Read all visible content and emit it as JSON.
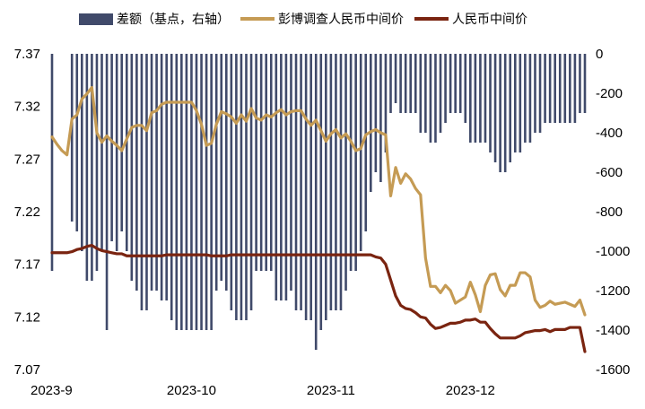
{
  "chart_data": {
    "type": "bar+line",
    "title": "",
    "colors": {
      "bar": "#404a6a",
      "survey": "#c59b54",
      "fixing": "#7a2410"
    },
    "left_axis": {
      "ylim": [
        7.07,
        7.37
      ],
      "ticks": [
        "7.37",
        "7.32",
        "7.27",
        "7.22",
        "7.17",
        "7.12",
        "7.07"
      ]
    },
    "right_axis": {
      "ylim": [
        -1600,
        0
      ],
      "ticks": [
        "0",
        "-200",
        "-400",
        "-600",
        "-800",
        "-1000",
        "-1200",
        "-1400",
        "-1600"
      ]
    },
    "x_tick_labels": [
      "2023-9",
      "2023-10",
      "2023-11",
      "2023-12"
    ],
    "x_tick_positions": [
      0,
      28,
      56,
      84
    ],
    "n_points": 108,
    "series": [
      {
        "name": "差额（基点，右轴）",
        "type": "bar",
        "axis": "right",
        "values": [
          -1100,
          0,
          0,
          0,
          -850,
          -900,
          -1000,
          -1150,
          -1150,
          -1100,
          -1000,
          -1400,
          -950,
          -1000,
          -900,
          -1000,
          -1150,
          -1200,
          -1300,
          -1300,
          -1200,
          -1200,
          -1250,
          -1250,
          -1350,
          -1400,
          -1400,
          -1400,
          -1400,
          -1400,
          -1400,
          -1400,
          -1400,
          -1200,
          -1150,
          -1200,
          -1300,
          -1350,
          -1350,
          -1350,
          -1300,
          -1100,
          -1100,
          -1100,
          -1100,
          -1250,
          -1250,
          -1250,
          -1200,
          -1300,
          -1300,
          -1350,
          -1350,
          -1500,
          -1400,
          -1350,
          -1300,
          -1300,
          -1300,
          -1200,
          -1100,
          -1100,
          -1000,
          -900,
          -700,
          -600,
          -650,
          -500,
          -300,
          -250,
          -300,
          -300,
          -300,
          -300,
          -400,
          -400,
          -450,
          -450,
          -400,
          -350,
          -300,
          -300,
          -300,
          -350,
          -450,
          -450,
          -450,
          -450,
          -500,
          -550,
          -600,
          -600,
          -550,
          -500,
          -500,
          -450,
          -450,
          -400,
          -400,
          -350,
          -350,
          -350,
          -350,
          -350,
          -350,
          -350,
          -300,
          -300
        ]
      },
      {
        "name": "彭博调查人民币中间价",
        "type": "line",
        "axis": "left",
        "values": [
          7.291,
          7.284,
          7.278,
          7.274,
          7.308,
          7.312,
          7.327,
          7.332,
          7.338,
          7.295,
          7.286,
          7.292,
          7.287,
          7.283,
          7.278,
          7.289,
          7.3,
          7.302,
          7.302,
          7.297,
          7.314,
          7.316,
          7.322,
          7.324,
          7.324,
          7.324,
          7.324,
          7.324,
          7.324,
          7.316,
          7.303,
          7.283,
          7.285,
          7.303,
          7.315,
          7.313,
          7.31,
          7.304,
          7.312,
          7.306,
          7.318,
          7.309,
          7.307,
          7.312,
          7.31,
          7.314,
          7.317,
          7.312,
          7.315,
          7.316,
          7.316,
          7.308,
          7.302,
          7.307,
          7.297,
          7.287,
          7.294,
          7.298,
          7.29,
          7.294,
          7.287,
          7.278,
          7.28,
          7.293,
          7.296,
          7.298,
          7.295,
          7.293,
          7.235,
          7.262,
          7.247,
          7.256,
          7.251,
          7.242,
          7.236,
          7.176,
          7.149,
          7.149,
          7.143,
          7.15,
          7.145,
          7.133,
          7.136,
          7.139,
          7.153,
          7.141,
          7.125,
          7.15,
          7.16,
          7.161,
          7.146,
          7.14,
          7.15,
          7.15,
          7.162,
          7.162,
          7.158,
          7.136,
          7.129,
          7.131,
          7.135,
          7.132,
          7.133,
          7.134,
          7.132,
          7.13,
          7.136,
          7.122
        ]
      },
      {
        "name": "人民币中间价",
        "type": "line",
        "axis": "left",
        "values": [
          7.181,
          7.181,
          7.181,
          7.181,
          7.182,
          7.184,
          7.185,
          7.187,
          7.188,
          7.185,
          7.183,
          7.182,
          7.181,
          7.18,
          7.18,
          7.178,
          7.178,
          7.178,
          7.178,
          7.178,
          7.178,
          7.178,
          7.178,
          7.179,
          7.179,
          7.179,
          7.179,
          7.179,
          7.179,
          7.179,
          7.179,
          7.179,
          7.178,
          7.178,
          7.178,
          7.178,
          7.179,
          7.179,
          7.179,
          7.179,
          7.179,
          7.179,
          7.179,
          7.179,
          7.179,
          7.179,
          7.179,
          7.179,
          7.179,
          7.179,
          7.179,
          7.179,
          7.179,
          7.179,
          7.179,
          7.179,
          7.179,
          7.179,
          7.179,
          7.179,
          7.179,
          7.179,
          7.179,
          7.179,
          7.179,
          7.177,
          7.176,
          7.17,
          7.155,
          7.14,
          7.131,
          7.128,
          7.127,
          7.124,
          7.12,
          7.119,
          7.113,
          7.109,
          7.11,
          7.112,
          7.114,
          7.114,
          7.115,
          7.117,
          7.117,
          7.118,
          7.115,
          7.115,
          7.109,
          7.104,
          7.1,
          7.1,
          7.1,
          7.1,
          7.102,
          7.105,
          7.106,
          7.107,
          7.107,
          7.108,
          7.106,
          7.108,
          7.108,
          7.108,
          7.11,
          7.11,
          7.11,
          7.087
        ]
      }
    ]
  }
}
